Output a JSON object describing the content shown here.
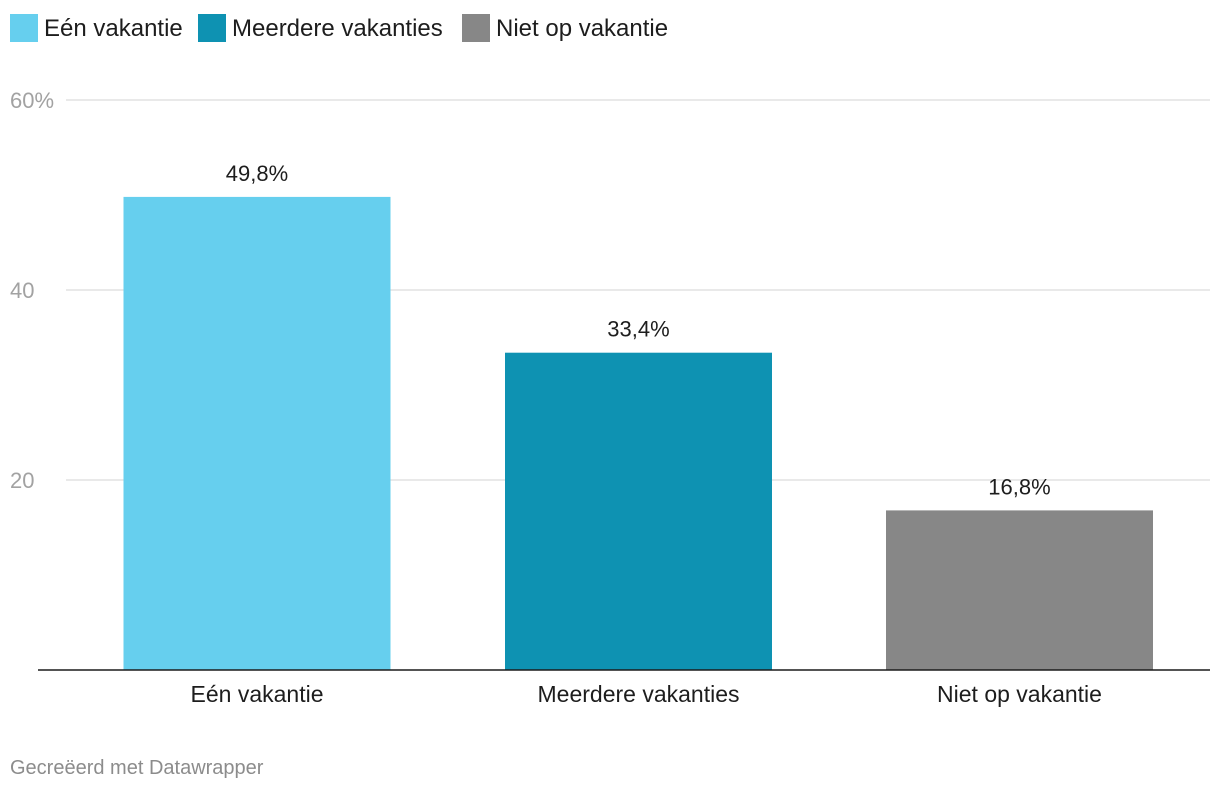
{
  "chart_data": {
    "type": "bar",
    "categories": [
      "Eén vakantie",
      "Meerdere vakanties",
      "Niet op vakantie"
    ],
    "values": [
      49.8,
      33.4,
      16.8
    ],
    "value_labels": [
      "49,8%",
      "33,4%",
      "16,8%"
    ],
    "colors": [
      "#66cfee",
      "#0e92b2",
      "#878787"
    ],
    "legend": {
      "placement": "top-left",
      "items": [
        {
          "label": "Eén vakantie",
          "color": "#66cfee"
        },
        {
          "label": "Meerdere vakanties",
          "color": "#0e92b2"
        },
        {
          "label": "Niet op vakantie",
          "color": "#878787"
        }
      ]
    },
    "y_axis": {
      "ticks": [
        20,
        40,
        60
      ],
      "tick_labels": [
        "20",
        "40",
        "60%"
      ],
      "ylim": [
        0,
        60
      ],
      "grid": true
    },
    "title": "",
    "xlabel": "",
    "ylabel": ""
  },
  "footer": {
    "credit": "Gecreëerd met Datawrapper"
  }
}
